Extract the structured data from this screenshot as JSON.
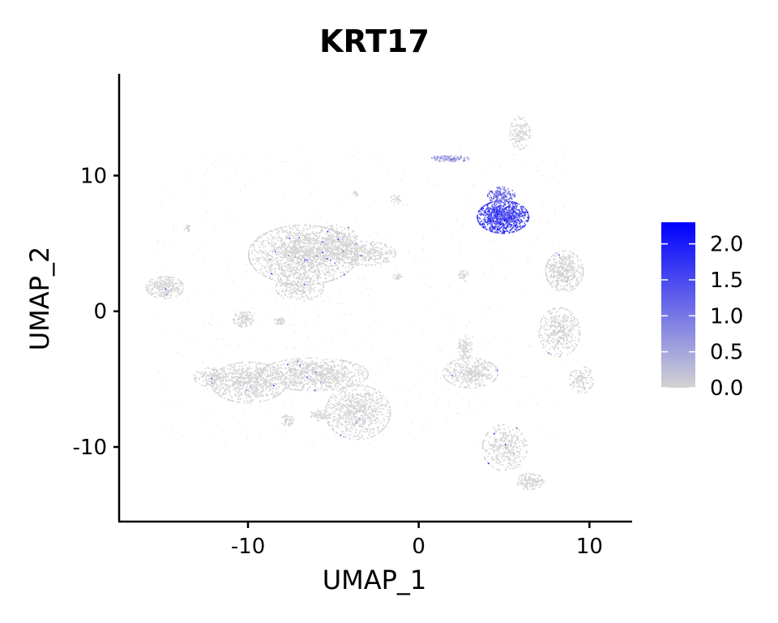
{
  "chart_data": {
    "type": "scatter",
    "title": "KRT17",
    "xlabel": "UMAP_1",
    "ylabel": "UMAP_2",
    "xlim": [
      -17.5,
      12.5
    ],
    "ylim": [
      -15.5,
      17.5
    ],
    "x_ticks": [
      -10,
      0,
      10
    ],
    "x_tick_labels": [
      "-10",
      "0",
      "10"
    ],
    "y_ticks": [
      -10,
      0,
      10
    ],
    "y_tick_labels": [
      "-10",
      "0",
      "10"
    ],
    "grid": false,
    "legend": {
      "placement": "right",
      "type": "colorbar",
      "ticks": [
        0.0,
        0.5,
        1.0,
        1.5,
        2.0
      ],
      "tick_labels": [
        "0.0",
        "0.5",
        "1.0",
        "1.5",
        "2.0"
      ],
      "range": [
        0.0,
        2.3
      ],
      "low_color": "#d3d3d3",
      "high_color": "#0000ff"
    },
    "clusters": [
      {
        "x": -6.8,
        "y": 4.2,
        "rx": 3.2,
        "ry": 2.2,
        "expr": 0.0,
        "n": 1600
      },
      {
        "x": -4.8,
        "y": 5.2,
        "rx": 1.2,
        "ry": 1.2,
        "expr": 0.0,
        "n": 250
      },
      {
        "x": -3.2,
        "y": 4.3,
        "rx": 1.8,
        "ry": 0.9,
        "expr": 0.0,
        "n": 350
      },
      {
        "x": -7.0,
        "y": 1.8,
        "rx": 1.4,
        "ry": 1.0,
        "expr": 0.0,
        "n": 220
      },
      {
        "x": -10.0,
        "y": -5.2,
        "rx": 2.2,
        "ry": 1.5,
        "expr": 0.0,
        "n": 750
      },
      {
        "x": -12.2,
        "y": -4.8,
        "rx": 1.0,
        "ry": 0.7,
        "expr": 0.0,
        "n": 150
      },
      {
        "x": -6.2,
        "y": -4.6,
        "rx": 3.2,
        "ry": 1.2,
        "expr": 0.0,
        "n": 900
      },
      {
        "x": -3.6,
        "y": -7.4,
        "rx": 1.9,
        "ry": 2.0,
        "expr": 0.0,
        "n": 750
      },
      {
        "x": -5.8,
        "y": -7.6,
        "rx": 0.6,
        "ry": 0.4,
        "expr": 0.0,
        "n": 70
      },
      {
        "x": -7.7,
        "y": -8.0,
        "rx": 0.4,
        "ry": 0.4,
        "expr": 0.0,
        "n": 50
      },
      {
        "x": -14.9,
        "y": 1.8,
        "rx": 1.1,
        "ry": 0.8,
        "expr": 0.0,
        "n": 280
      },
      {
        "x": -13.6,
        "y": 6.1,
        "rx": 0.2,
        "ry": 0.3,
        "expr": 0.0,
        "n": 20
      },
      {
        "x": -10.3,
        "y": -0.5,
        "rx": 0.6,
        "ry": 0.6,
        "expr": 0.0,
        "n": 110
      },
      {
        "x": -8.2,
        "y": -0.7,
        "rx": 0.3,
        "ry": 0.3,
        "expr": 0.0,
        "n": 40
      },
      {
        "x": -3.7,
        "y": 8.7,
        "rx": 0.2,
        "ry": 0.2,
        "expr": 0.0,
        "n": 15
      },
      {
        "x": -1.3,
        "y": 8.3,
        "rx": 0.4,
        "ry": 0.3,
        "expr": 0.0,
        "n": 25
      },
      {
        "x": -1.3,
        "y": 2.6,
        "rx": 0.3,
        "ry": 0.2,
        "expr": 0.0,
        "n": 25
      },
      {
        "x": 1.8,
        "y": 11.3,
        "rx": 1.1,
        "ry": 0.25,
        "expr": 0.6,
        "n": 110
      },
      {
        "x": 5.9,
        "y": 13.2,
        "rx": 0.6,
        "ry": 1.2,
        "expr": 0.0,
        "n": 140
      },
      {
        "x": 4.9,
        "y": 7.0,
        "rx": 1.5,
        "ry": 1.2,
        "expr": 1.55,
        "n": 950
      },
      {
        "x": 4.8,
        "y": 8.6,
        "rx": 0.8,
        "ry": 0.6,
        "expr": 1.1,
        "n": 160
      },
      {
        "x": 2.6,
        "y": 2.7,
        "rx": 0.3,
        "ry": 0.4,
        "expr": 0.0,
        "n": 35
      },
      {
        "x": 3.0,
        "y": -4.5,
        "rx": 1.6,
        "ry": 1.1,
        "expr": 0.0,
        "n": 400
      },
      {
        "x": 2.7,
        "y": -2.6,
        "rx": 0.4,
        "ry": 0.9,
        "expr": 0.0,
        "n": 100
      },
      {
        "x": 5.0,
        "y": -10.0,
        "rx": 1.3,
        "ry": 1.7,
        "expr": 0.0,
        "n": 360
      },
      {
        "x": 6.5,
        "y": -12.5,
        "rx": 0.8,
        "ry": 0.6,
        "expr": 0.0,
        "n": 140
      },
      {
        "x": 8.5,
        "y": 3.0,
        "rx": 1.1,
        "ry": 1.5,
        "expr": 0.0,
        "n": 450
      },
      {
        "x": 8.2,
        "y": -1.5,
        "rx": 1.2,
        "ry": 1.8,
        "expr": 0.0,
        "n": 380
      },
      {
        "x": 9.5,
        "y": -5.0,
        "rx": 0.7,
        "ry": 1.0,
        "expr": 0.0,
        "n": 120
      }
    ]
  }
}
